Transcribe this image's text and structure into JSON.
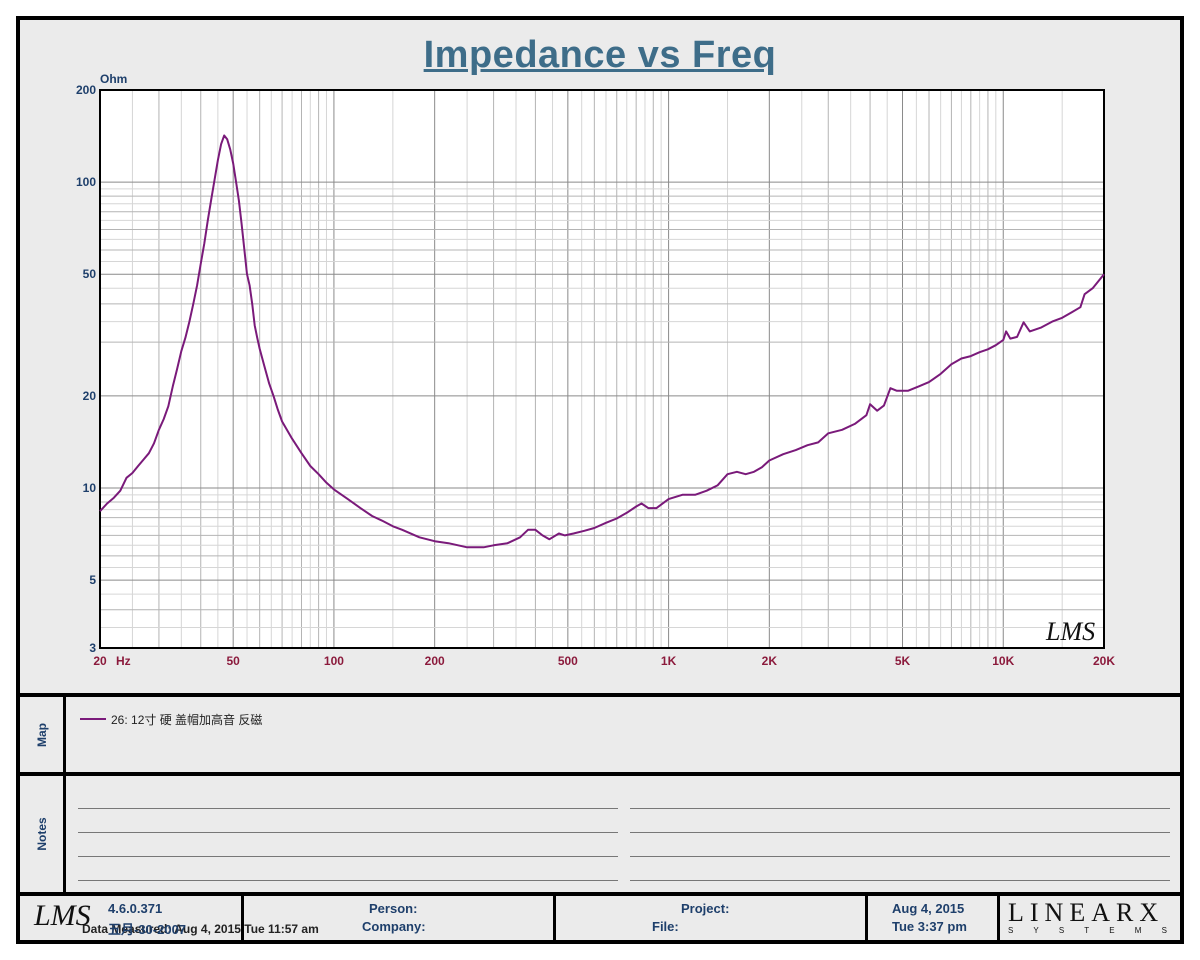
{
  "chart_data": {
    "type": "line",
    "title": "Impedance vs Freq",
    "ylabel": "Ohm",
    "x_unit_label": "Hz",
    "x_scale": "log",
    "y_scale": "log",
    "xlim": [
      20,
      20000
    ],
    "ylim": [
      3,
      200
    ],
    "x_tick_labels": [
      {
        "value": 20,
        "label": "20"
      },
      {
        "value": 50,
        "label": "50"
      },
      {
        "value": 100,
        "label": "100"
      },
      {
        "value": 200,
        "label": "200"
      },
      {
        "value": 500,
        "label": "500"
      },
      {
        "value": 1000,
        "label": "1K"
      },
      {
        "value": 2000,
        "label": "2K"
      },
      {
        "value": 5000,
        "label": "5K"
      },
      {
        "value": 10000,
        "label": "10K"
      },
      {
        "value": 20000,
        "label": "20K"
      }
    ],
    "y_tick_labels": [
      {
        "value": 200,
        "label": "200"
      },
      {
        "value": 100,
        "label": "100"
      },
      {
        "value": 50,
        "label": "50"
      },
      {
        "value": 20,
        "label": "20"
      },
      {
        "value": 10,
        "label": "10"
      },
      {
        "value": 5,
        "label": "5"
      },
      {
        "value": 3,
        "label": "3"
      }
    ],
    "grid": true,
    "series": [
      {
        "name": "26: 12寸 硬  盖帽加高音 反磁",
        "color": "#7a1a7a",
        "points": [
          [
            20,
            8.4
          ],
          [
            21,
            8.9
          ],
          [
            22,
            9.3
          ],
          [
            23,
            9.8
          ],
          [
            24,
            10.8
          ],
          [
            25,
            11.2
          ],
          [
            26,
            11.8
          ],
          [
            27,
            12.4
          ],
          [
            28,
            13.0
          ],
          [
            29,
            14.0
          ],
          [
            30,
            15.5
          ],
          [
            31,
            16.8
          ],
          [
            32,
            18.5
          ],
          [
            33,
            21.5
          ],
          [
            34,
            24.5
          ],
          [
            35,
            28
          ],
          [
            36,
            31
          ],
          [
            37,
            35
          ],
          [
            38,
            40
          ],
          [
            39,
            46
          ],
          [
            40,
            54
          ],
          [
            41,
            63
          ],
          [
            42,
            75
          ],
          [
            43,
            88
          ],
          [
            44,
            102
          ],
          [
            45,
            118
          ],
          [
            46,
            133
          ],
          [
            47,
            142
          ],
          [
            48,
            138
          ],
          [
            49,
            128
          ],
          [
            50,
            115
          ],
          [
            51,
            100
          ],
          [
            52,
            87
          ],
          [
            53,
            73
          ],
          [
            54,
            60
          ],
          [
            55,
            50
          ],
          [
            56,
            46
          ],
          [
            57,
            40
          ],
          [
            58,
            34
          ],
          [
            59,
            31
          ],
          [
            60,
            28.5
          ],
          [
            62,
            25
          ],
          [
            64,
            22
          ],
          [
            66,
            20
          ],
          [
            68,
            18
          ],
          [
            70,
            16.5
          ],
          [
            75,
            14.5
          ],
          [
            80,
            13
          ],
          [
            85,
            11.8
          ],
          [
            90,
            11.1
          ],
          [
            95,
            10.4
          ],
          [
            100,
            9.9
          ],
          [
            110,
            9.2
          ],
          [
            120,
            8.6
          ],
          [
            130,
            8.1
          ],
          [
            140,
            7.8
          ],
          [
            150,
            7.5
          ],
          [
            160,
            7.3
          ],
          [
            180,
            6.9
          ],
          [
            200,
            6.7
          ],
          [
            220,
            6.6
          ],
          [
            250,
            6.4
          ],
          [
            280,
            6.4
          ],
          [
            300,
            6.5
          ],
          [
            330,
            6.6
          ],
          [
            360,
            6.9
          ],
          [
            380,
            7.3
          ],
          [
            400,
            7.3
          ],
          [
            420,
            7.0
          ],
          [
            440,
            6.8
          ],
          [
            470,
            7.1
          ],
          [
            490,
            7.0
          ],
          [
            520,
            7.1
          ],
          [
            560,
            7.25
          ],
          [
            600,
            7.4
          ],
          [
            650,
            7.7
          ],
          [
            700,
            7.95
          ],
          [
            750,
            8.3
          ],
          [
            800,
            8.7
          ],
          [
            830,
            8.9
          ],
          [
            870,
            8.6
          ],
          [
            920,
            8.6
          ],
          [
            1000,
            9.2
          ],
          [
            1100,
            9.5
          ],
          [
            1200,
            9.5
          ],
          [
            1300,
            9.8
          ],
          [
            1400,
            10.2
          ],
          [
            1500,
            11.1
          ],
          [
            1600,
            11.3
          ],
          [
            1700,
            11.1
          ],
          [
            1800,
            11.3
          ],
          [
            1900,
            11.7
          ],
          [
            2000,
            12.3
          ],
          [
            2200,
            12.9
          ],
          [
            2400,
            13.3
          ],
          [
            2600,
            13.8
          ],
          [
            2800,
            14.1
          ],
          [
            3000,
            15.1
          ],
          [
            3300,
            15.5
          ],
          [
            3600,
            16.2
          ],
          [
            3900,
            17.3
          ],
          [
            4000,
            18.8
          ],
          [
            4200,
            17.9
          ],
          [
            4400,
            18.6
          ],
          [
            4600,
            21.2
          ],
          [
            4800,
            20.8
          ],
          [
            5200,
            20.8
          ],
          [
            5600,
            21.5
          ],
          [
            6000,
            22.2
          ],
          [
            6500,
            23.6
          ],
          [
            7000,
            25.4
          ],
          [
            7500,
            26.5
          ],
          [
            8000,
            27.0
          ],
          [
            8500,
            27.8
          ],
          [
            9000,
            28.4
          ],
          [
            9500,
            29.3
          ],
          [
            10000,
            30.5
          ],
          [
            10200,
            32.5
          ],
          [
            10500,
            30.8
          ],
          [
            11000,
            31.2
          ],
          [
            11500,
            34.8
          ],
          [
            12000,
            32.5
          ],
          [
            13000,
            33.5
          ],
          [
            14000,
            35.0
          ],
          [
            15000,
            36.0
          ],
          [
            16000,
            37.5
          ],
          [
            17000,
            39.0
          ],
          [
            17500,
            43.0
          ],
          [
            18500,
            45.0
          ],
          [
            20000,
            50.0
          ]
        ]
      }
    ]
  },
  "watermark": "LMS",
  "map_label": "Map",
  "notes_label": "Notes",
  "data_measured": "Data Measured: Aug  4, 2015  Tue 11:57 am",
  "footer": {
    "logo": "LMS",
    "version": "4.6.0.371",
    "build_date": "五月-30-2007",
    "person_label": "Person:",
    "company_label": "Company:",
    "project_label": "Project:",
    "file_label": "File:",
    "date": "Aug  4, 2015",
    "time": "Tue  3:37 pm",
    "brand": "LINEARX",
    "brand_sub": "S Y S T E M S"
  }
}
